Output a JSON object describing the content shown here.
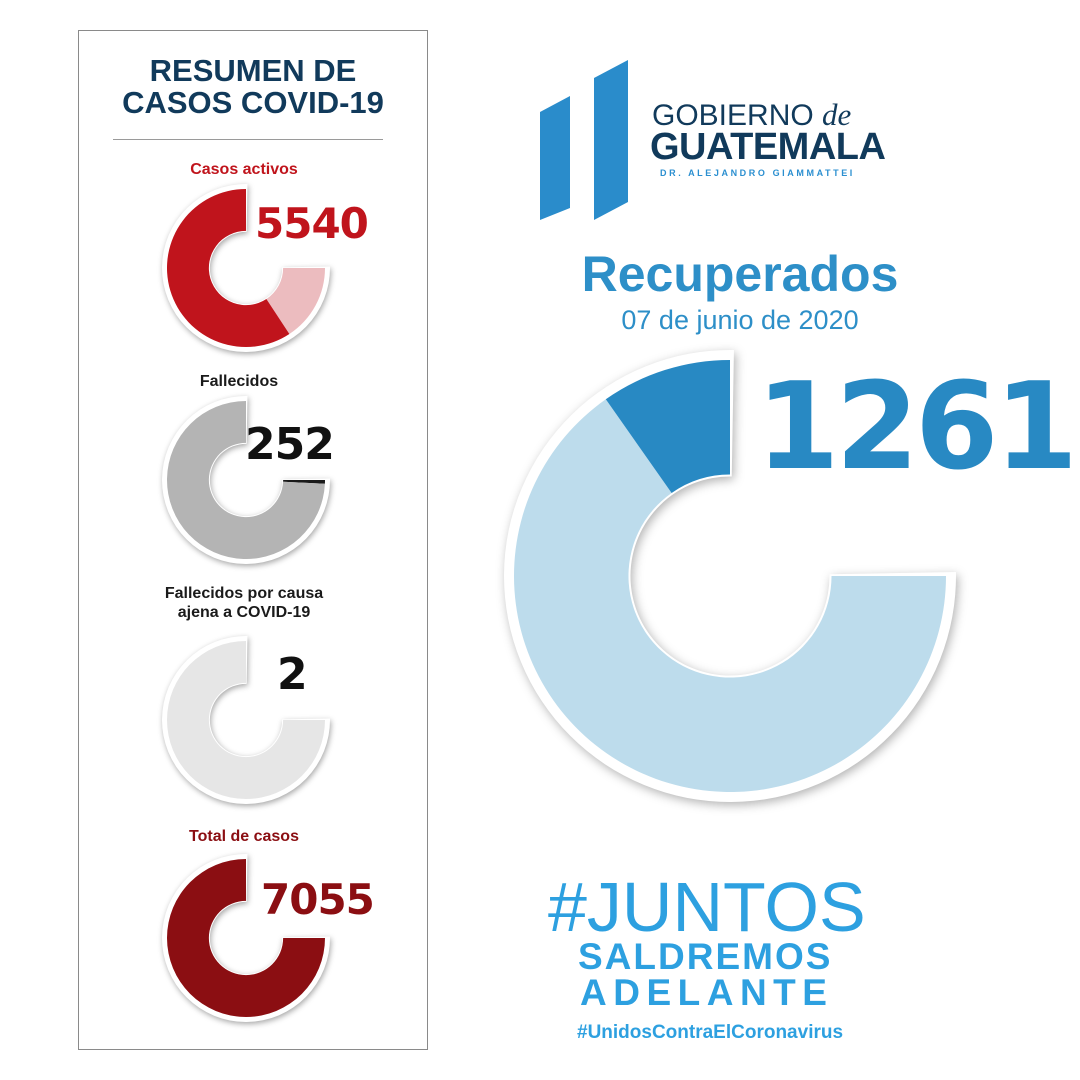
{
  "panel": {
    "title_line1": "RESUMEN DE",
    "title_line2": "CASOS COVID-19",
    "stats": [
      {
        "label": "Casos activos",
        "value": "5540",
        "fraction": 0.79,
        "color": "#c0141c",
        "rest_color": "#ecbcbf",
        "label_color": "#c0141c"
      },
      {
        "label": "Fallecidos",
        "value": "252",
        "fraction": 0.99,
        "color": "#b4b4b4",
        "rest_color": "#1a1a1a",
        "label_color": "#1a1a1a"
      },
      {
        "label_line1": "Fallecidos por causa",
        "label_line2": "ajena a COVID-19",
        "value": "2",
        "fraction": 1.0,
        "color": "#e6e6e6",
        "rest_color": "#e6e6e6",
        "label_color": "#1a1a1a"
      },
      {
        "label": "Total de casos",
        "value": "7055",
        "fraction": 1.0,
        "color": "#8b0e12",
        "rest_color": "#8b0e12",
        "label_color": "#8b0e12"
      }
    ]
  },
  "logo": {
    "line1": "GOBIERNO",
    "line1_de": "de",
    "line2": "GUATEMALA",
    "line3": "DR. ALEJANDRO GIAMMATTEI",
    "color": "#2a8ccb"
  },
  "recuperados": {
    "title": "Recuperados",
    "date": "07 de junio de 2020",
    "value": "1261",
    "fraction": 0.13,
    "color": "#2889c3",
    "rest_color": "#bddcec"
  },
  "slogan": {
    "line1": "#JUNTOS",
    "line2": "SALDREMOS",
    "line3": "ADELANTE",
    "hashtag": "#UnidosContraElCoronavirus"
  }
}
